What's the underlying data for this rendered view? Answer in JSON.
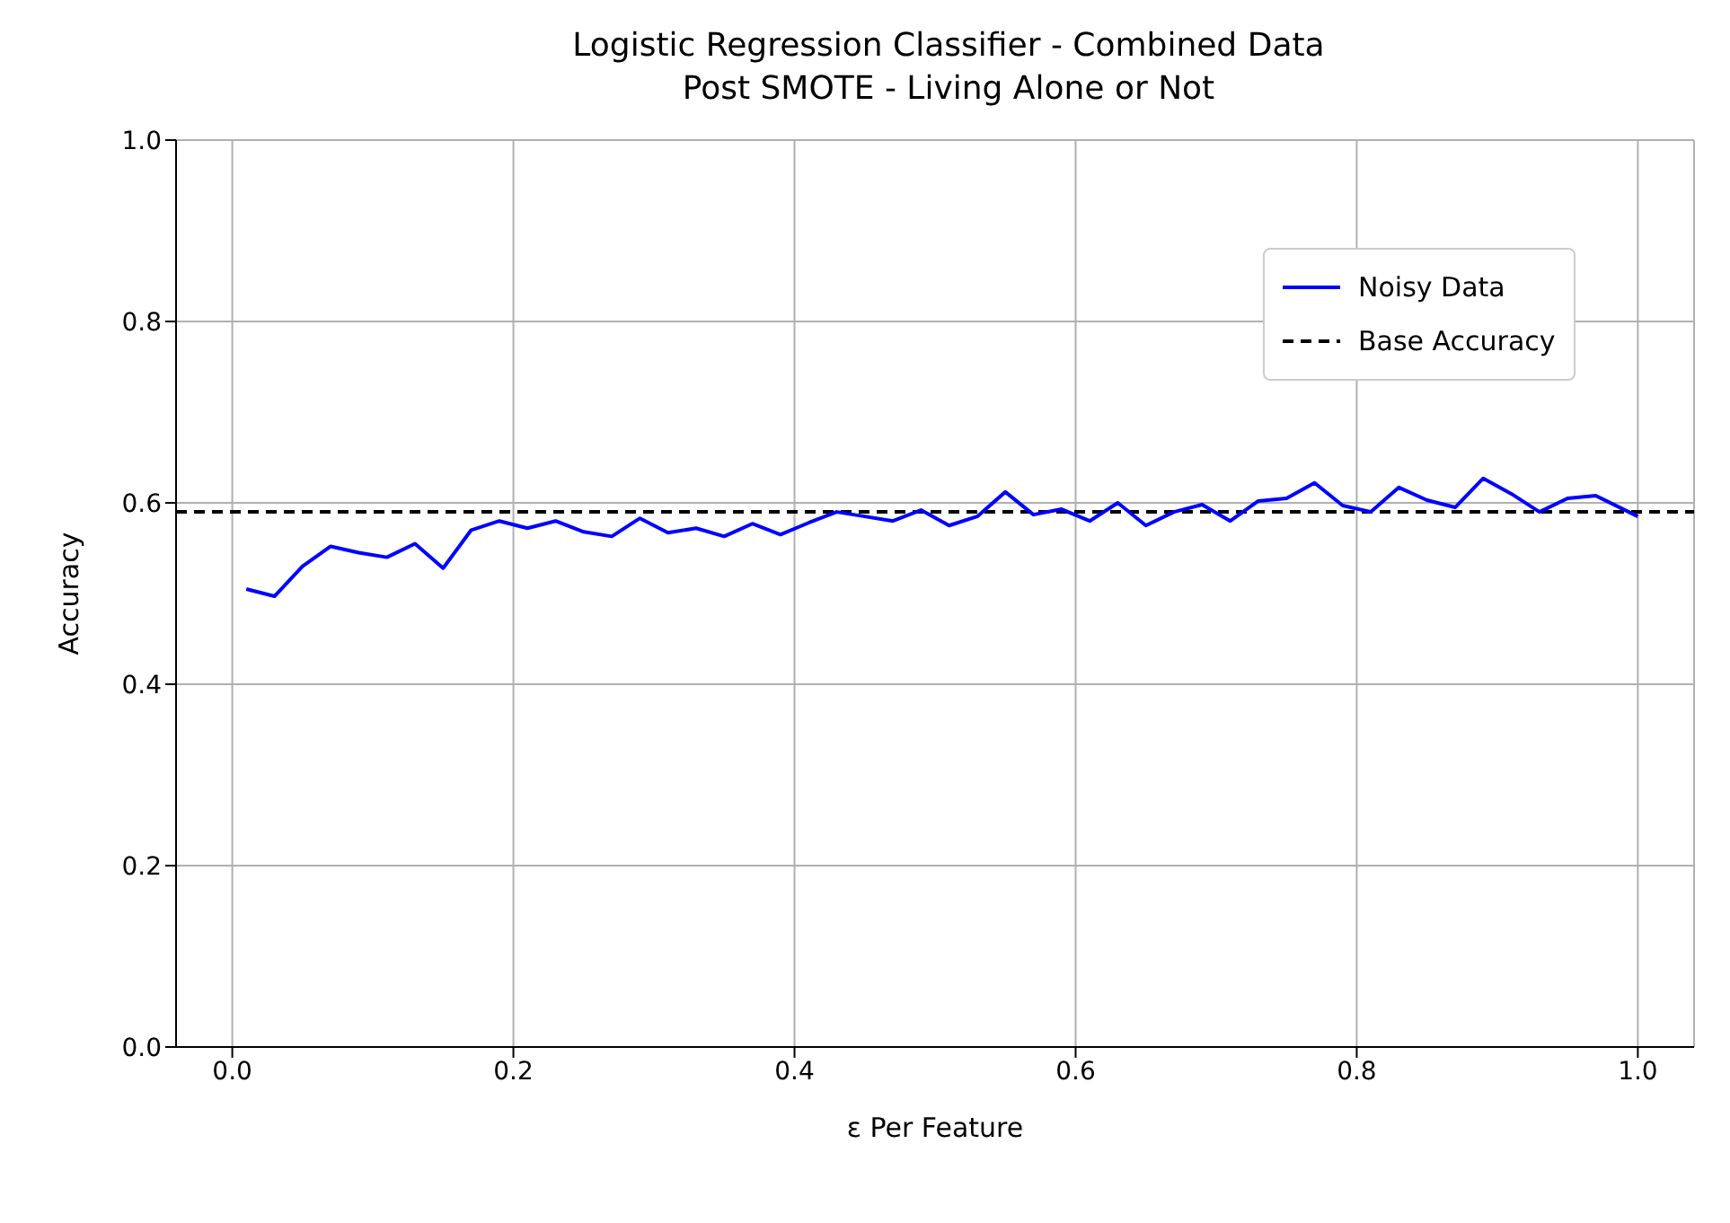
{
  "chart_data": {
    "type": "line",
    "title": "Logistic Regression Classifier - Combined Data\nPost SMOTE - Living Alone or Not",
    "xlabel": "ε Per Feature",
    "ylabel": "Accuracy",
    "x": [
      0.01,
      0.03,
      0.05,
      0.07,
      0.09,
      0.11,
      0.13,
      0.15,
      0.17,
      0.19,
      0.21,
      0.23,
      0.25,
      0.27,
      0.29,
      0.31,
      0.33,
      0.35,
      0.37,
      0.39,
      0.41,
      0.43,
      0.45,
      0.47,
      0.49,
      0.51,
      0.53,
      0.55,
      0.57,
      0.59,
      0.61,
      0.63,
      0.65,
      0.67,
      0.69,
      0.71,
      0.73,
      0.75,
      0.77,
      0.79,
      0.81,
      0.83,
      0.85,
      0.87,
      0.89,
      0.91,
      0.93,
      0.95,
      0.97,
      1.0
    ],
    "series": [
      {
        "name": "Noisy Data",
        "color": "#0000ff",
        "values": [
          0.505,
          0.497,
          0.53,
          0.552,
          0.545,
          0.54,
          0.555,
          0.528,
          0.57,
          0.58,
          0.572,
          0.58,
          0.568,
          0.563,
          0.583,
          0.567,
          0.572,
          0.563,
          0.577,
          0.565,
          0.578,
          0.59,
          0.585,
          0.58,
          0.592,
          0.575,
          0.585,
          0.612,
          0.587,
          0.593,
          0.58,
          0.6,
          0.575,
          0.59,
          0.598,
          0.58,
          0.602,
          0.605,
          0.622,
          0.597,
          0.59,
          0.617,
          0.603,
          0.595,
          0.627,
          0.61,
          0.59,
          0.605,
          0.608,
          0.585
        ]
      }
    ],
    "ref_lines": [
      {
        "axis": "y",
        "value": 0.59,
        "label": "Base Accuracy",
        "color": "#000000",
        "line_style": "dashed"
      }
    ],
    "xlim": [
      -0.04,
      1.04
    ],
    "xticks": [
      {
        "value": 0,
        "label": "0.0"
      },
      0.2,
      0.4,
      0.6,
      0.8,
      {
        "value": 1,
        "label": "1.0"
      }
    ],
    "ylim": [
      0,
      1
    ],
    "yticks": [
      {
        "value": 0,
        "label": "0.0"
      },
      0.2,
      0.4,
      0.6,
      0.8,
      {
        "value": 1,
        "label": "1.0"
      }
    ],
    "grid": true,
    "legend": "top right",
    "marker": "none",
    "line_style": "solid"
  }
}
